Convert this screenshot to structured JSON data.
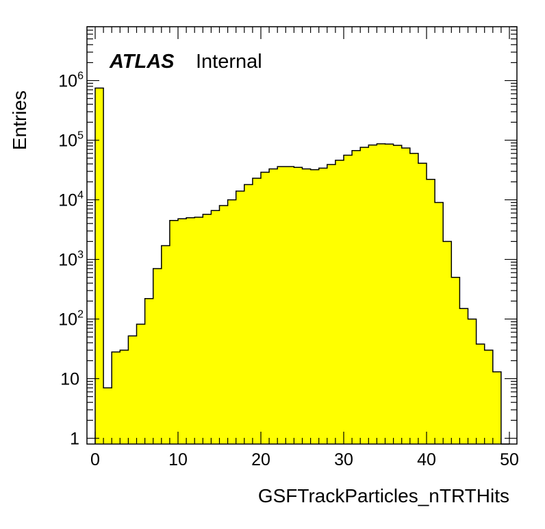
{
  "chart_data": {
    "type": "bar",
    "style": "histogram-step-filled",
    "xlabel": "GSFTrackParticles_nTRTHits",
    "ylabel": "Entries",
    "label_bold": "ATLAS",
    "label_text": "Internal",
    "xlim": [
      0,
      50
    ],
    "ylim": [
      0.8,
      8000000
    ],
    "yscale": "log",
    "bin_width": 1,
    "fill_color": "#ffff00",
    "line_color": "#000000",
    "x_ticks": [
      "0",
      "10",
      "20",
      "30",
      "40",
      "50"
    ],
    "y_ticks": [
      {
        "base": "1",
        "exp": ""
      },
      {
        "base": "10",
        "exp": ""
      },
      {
        "base": "10",
        "exp": "2"
      },
      {
        "base": "10",
        "exp": "3"
      },
      {
        "base": "10",
        "exp": "4"
      },
      {
        "base": "10",
        "exp": "5"
      },
      {
        "base": "10",
        "exp": "6"
      }
    ],
    "y_tick_values": [
      1,
      10,
      100,
      1000,
      10000,
      100000,
      1000000
    ],
    "values": [
      750000,
      7,
      28,
      30,
      52,
      82,
      220,
      700,
      1700,
      4500,
      4800,
      5000,
      5100,
      5700,
      6600,
      8000,
      10000,
      14000,
      18000,
      23000,
      29000,
      33000,
      36000,
      36000,
      35000,
      33000,
      32000,
      34000,
      39000,
      46000,
      56000,
      67000,
      76000,
      83000,
      87000,
      86000,
      82000,
      74000,
      60000,
      41000,
      22000,
      9000,
      2000,
      500,
      150,
      100,
      38,
      30,
      13,
      0
    ]
  }
}
